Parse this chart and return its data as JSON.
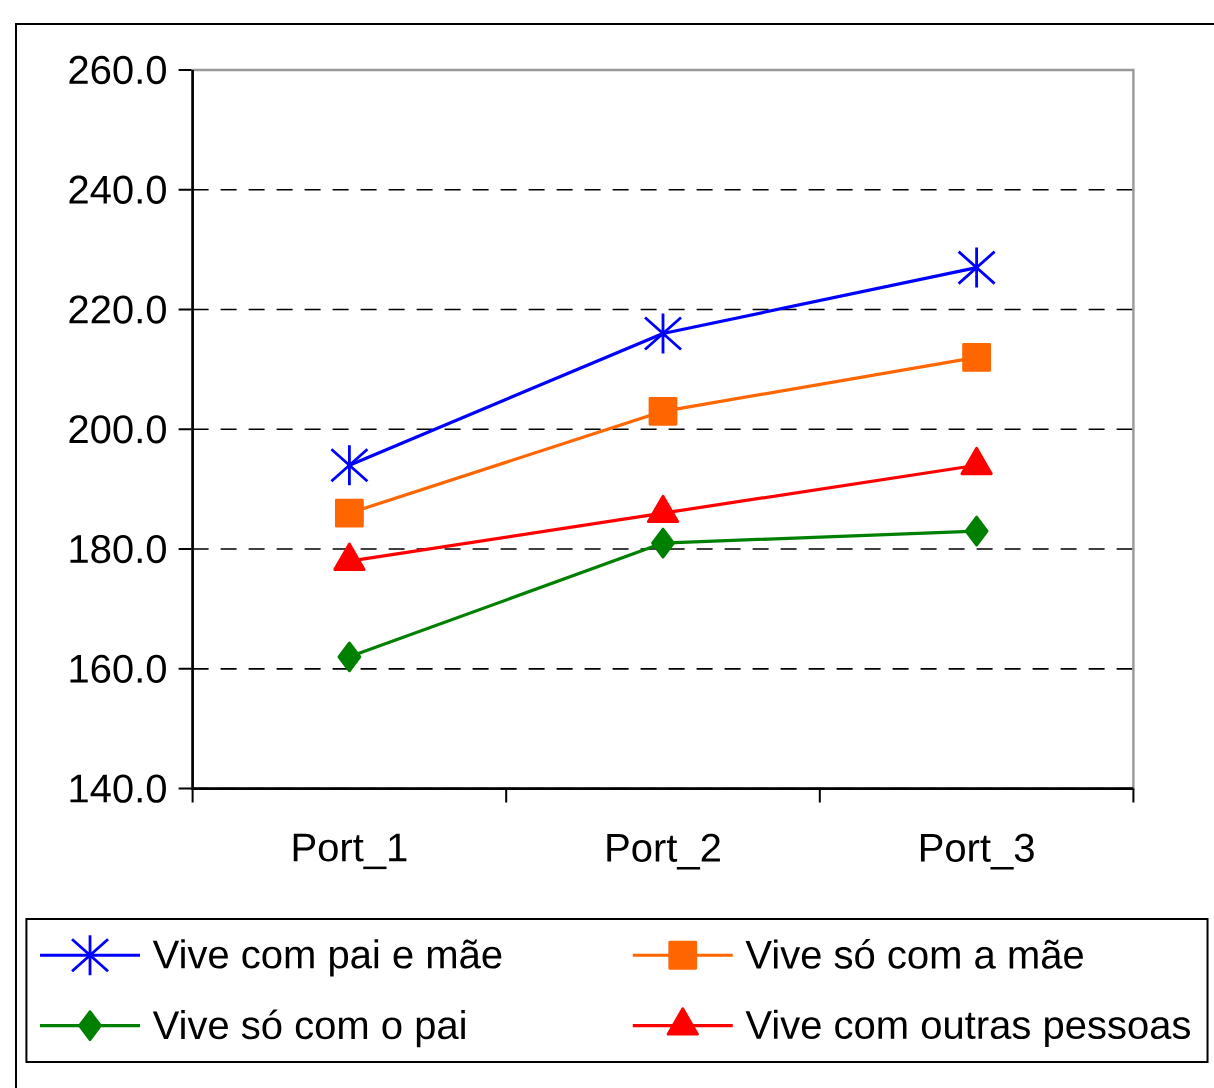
{
  "chart_data": {
    "type": "line",
    "categories": [
      "Port_1",
      "Port_2",
      "Port_3"
    ],
    "series": [
      {
        "name": "Vive com pai e mãe",
        "color": "#0000ff",
        "marker": "cross",
        "values": [
          194,
          216,
          227
        ]
      },
      {
        "name": "Vive só com a mãe",
        "color": "#ff6600",
        "marker": "square",
        "values": [
          186,
          203,
          212
        ]
      },
      {
        "name": "Vive só com o pai",
        "color": "#008000",
        "marker": "diamond",
        "values": [
          162,
          181,
          183
        ]
      },
      {
        "name": "Vive com outras pessoas",
        "color": "#ff0000",
        "marker": "triangle",
        "values": [
          178,
          186,
          194
        ]
      }
    ],
    "ylim": [
      140,
      260
    ],
    "yticks": [
      {
        "value": 140,
        "label": "140.0"
      },
      {
        "value": 160,
        "label": "160.0"
      },
      {
        "value": 180,
        "label": "180.0"
      },
      {
        "value": 200,
        "label": "200.0"
      },
      {
        "value": 220,
        "label": "220.0"
      },
      {
        "value": 240,
        "label": "240.0"
      },
      {
        "value": 260,
        "label": "260.0"
      }
    ],
    "grid": "y",
    "legend": "bottom",
    "line_style": "solid"
  }
}
